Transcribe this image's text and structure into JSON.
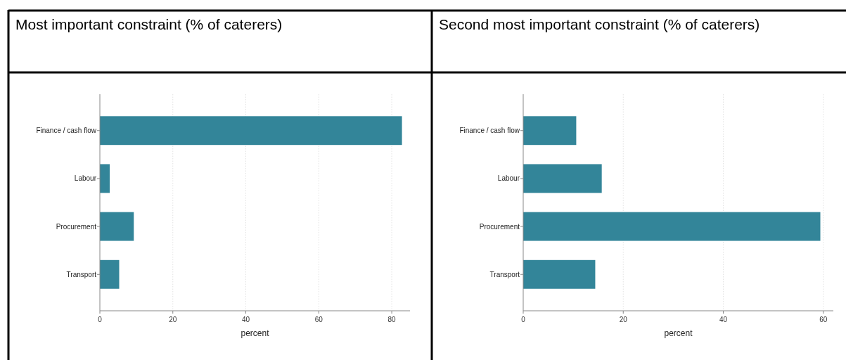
{
  "chart_data": [
    {
      "type": "bar",
      "orientation": "horizontal",
      "title": "Most important constraint (% of caterers)",
      "categories": [
        "Finance / cash flow",
        "Labour",
        "Procurement",
        "Transport"
      ],
      "values": [
        82.8,
        2.7,
        9.3,
        5.3
      ],
      "color": "#338599",
      "xlabel": "percent",
      "xlim": [
        0,
        85
      ],
      "xticks": [
        0,
        20,
        40,
        60,
        80
      ],
      "grid": "x"
    },
    {
      "type": "bar",
      "orientation": "horizontal",
      "title": "Second most important constraint (% of caterers)",
      "categories": [
        "Finance / cash flow",
        "Labour",
        "Procurement",
        "Transport"
      ],
      "values": [
        10.6,
        15.7,
        59.4,
        14.4
      ],
      "color": "#338599",
      "xlabel": "percent",
      "xlim": [
        0,
        62
      ],
      "xticks": [
        0,
        20,
        40,
        60
      ],
      "grid": "x"
    }
  ]
}
